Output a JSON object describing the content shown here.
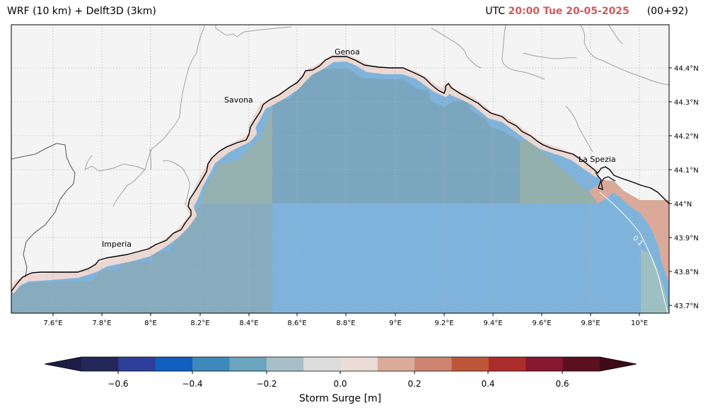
{
  "header": {
    "model_title": "WRF (10 km) + Delft3D (3km)",
    "utc_label": "UTC",
    "valid_time": "20:00 Tue 20-05-2025",
    "forecast_step": "(00+92)"
  },
  "map": {
    "lon_ticks": [
      "7.6°E",
      "7.8°E",
      "8°E",
      "8.2°E",
      "8.4°E",
      "8.6°E",
      "8.8°E",
      "9°E",
      "9.2°E",
      "9.4°E",
      "9.6°E",
      "9.8°E",
      "10°E"
    ],
    "lat_ticks": [
      "44.4°N",
      "44.3°N",
      "44.2°N",
      "44.1°N",
      "44°N",
      "43.9°N",
      "43.8°N",
      "43.7°N"
    ],
    "cities": [
      {
        "name": "Genoa"
      },
      {
        "name": "Savona"
      },
      {
        "name": "La Spezia"
      },
      {
        "name": "Imperia"
      }
    ],
    "contour_label": "0.1",
    "land_color": "#f4f4f4",
    "coast_color": "#000000",
    "border_color": "#a0a0a0"
  },
  "colorbar": {
    "label": "Storm Surge [m]",
    "ticks": [
      "−0.6",
      "−0.4",
      "−0.2",
      "0.0",
      "0.2",
      "0.4",
      "0.6"
    ],
    "colors": [
      "#232758",
      "#2e3f9b",
      "#1160bf",
      "#3f88bb",
      "#6aa5bd",
      "#a7bfc9",
      "#dcdcdc",
      "#ecdcd6",
      "#dbab9b",
      "#cd8470",
      "#be5739",
      "#ab2d2b",
      "#871631",
      "#5c0f20"
    ],
    "under_color": "#1b1e44",
    "over_color": "#400a18"
  }
}
